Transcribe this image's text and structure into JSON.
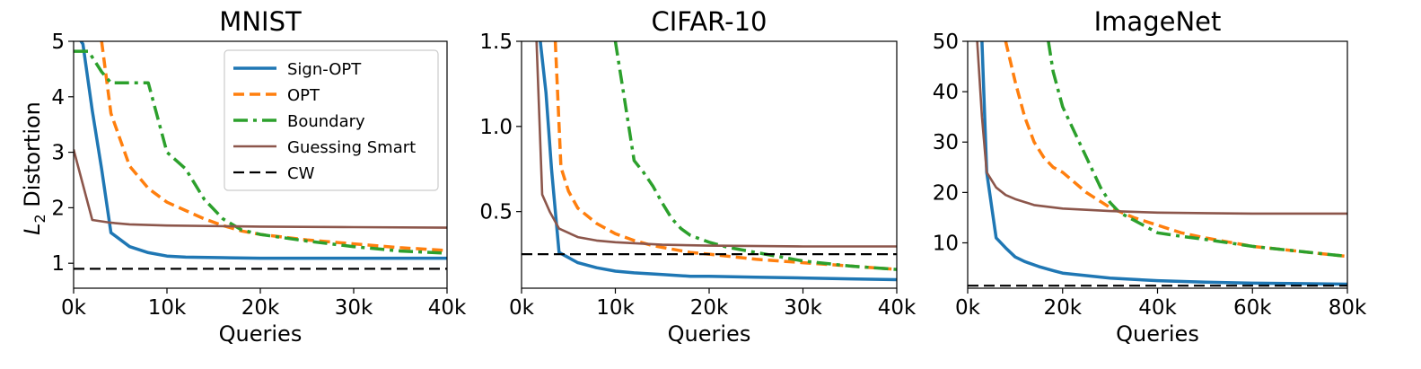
{
  "chart_data": [
    {
      "type": "line",
      "title": "MNIST",
      "xlabel": "Queries",
      "ylabel_main": "L",
      "ylabel_sub": "2",
      "ylabel_rest": " Distortion",
      "xlim": [
        0,
        40000
      ],
      "ylim": [
        0.55,
        5
      ],
      "xticks": [
        0,
        10000,
        20000,
        30000,
        40000
      ],
      "xtick_labels": [
        "0k",
        "10k",
        "20k",
        "30k",
        "40k"
      ],
      "yticks": [
        1,
        2,
        3,
        4,
        5
      ],
      "ytick_labels": [
        "1",
        "2",
        "3",
        "4",
        "5"
      ],
      "grid": false,
      "legend": {
        "position": "top-right",
        "entries": [
          "Sign-OPT",
          "OPT",
          "Boundary",
          "Guessing Smart",
          "CW"
        ]
      },
      "series": [
        {
          "name": "Sign-OPT",
          "color": "#1f77b4",
          "style": "solid",
          "x": [
            0,
            1000,
            2000,
            3000,
            4000,
            6000,
            8000,
            10000,
            12000,
            16000,
            20000,
            30000,
            40000
          ],
          "y": [
            5.2,
            4.95,
            3.75,
            2.7,
            1.55,
            1.3,
            1.19,
            1.13,
            1.11,
            1.1,
            1.09,
            1.09,
            1.09
          ]
        },
        {
          "name": "OPT",
          "color": "#ff7f0e",
          "style": "dashed",
          "x": [
            3000,
            4000,
            6000,
            8000,
            10000,
            12000,
            14000,
            16000,
            18000,
            20000,
            25000,
            30000,
            35000,
            40000
          ],
          "y": [
            5.0,
            3.7,
            2.75,
            2.35,
            2.1,
            1.95,
            1.8,
            1.68,
            1.58,
            1.52,
            1.42,
            1.35,
            1.28,
            1.23
          ]
        },
        {
          "name": "Boundary",
          "color": "#2ca02c",
          "style": "dashdot",
          "x": [
            0,
            1600,
            3000,
            4000,
            6000,
            8000,
            10000,
            12000,
            14000,
            16000,
            18000,
            20000,
            25000,
            30000,
            35000,
            40000
          ],
          "y": [
            4.82,
            4.82,
            4.45,
            4.25,
            4.25,
            4.25,
            3.0,
            2.7,
            2.15,
            1.8,
            1.6,
            1.52,
            1.4,
            1.3,
            1.22,
            1.18
          ]
        },
        {
          "name": "Guessing Smart",
          "color": "#8c564b",
          "style": "solid",
          "x": [
            0,
            2000,
            4000,
            6000,
            10000,
            20000,
            30000,
            40000
          ],
          "y": [
            3.05,
            1.78,
            1.73,
            1.7,
            1.68,
            1.66,
            1.65,
            1.64
          ]
        },
        {
          "name": "CW",
          "color": "#000000",
          "style": "dashed",
          "x": [
            0,
            40000
          ],
          "y": [
            0.9,
            0.9
          ]
        }
      ]
    },
    {
      "type": "line",
      "title": "CIFAR-10",
      "xlabel": "Queries",
      "xlim": [
        0,
        40000
      ],
      "ylim": [
        0.05,
        1.5
      ],
      "xticks": [
        0,
        10000,
        20000,
        30000,
        40000
      ],
      "xtick_labels": [
        "0k",
        "10k",
        "20k",
        "30k",
        "40k"
      ],
      "yticks": [
        0.5,
        1.0,
        1.5
      ],
      "ytick_labels": [
        "0.5",
        "1.0",
        "1.5"
      ],
      "grid": false,
      "series": [
        {
          "name": "Sign-OPT",
          "color": "#1f77b4",
          "style": "solid",
          "x": [
            2000,
            2600,
            3200,
            4000,
            6000,
            8000,
            10000,
            12000,
            15000,
            18000,
            20000,
            25000,
            30000,
            35000,
            40000
          ],
          "y": [
            1.5,
            1.2,
            0.75,
            0.26,
            0.2,
            0.17,
            0.15,
            0.14,
            0.13,
            0.12,
            0.12,
            0.115,
            0.11,
            0.105,
            0.1
          ]
        },
        {
          "name": "OPT",
          "color": "#ff7f0e",
          "style": "dashed",
          "x": [
            3600,
            4200,
            5000,
            6000,
            8000,
            10000,
            12000,
            14000,
            16000,
            18000,
            20000,
            25000,
            30000,
            35000,
            40000
          ],
          "y": [
            1.5,
            0.76,
            0.62,
            0.52,
            0.43,
            0.37,
            0.33,
            0.3,
            0.28,
            0.26,
            0.25,
            0.22,
            0.2,
            0.18,
            0.16
          ]
        },
        {
          "name": "Boundary",
          "color": "#2ca02c",
          "style": "dashdot",
          "x": [
            10000,
            11000,
            12000,
            13000,
            14000,
            15000,
            16000,
            17000,
            18000,
            20000,
            22000,
            25000,
            30000,
            35000,
            40000
          ],
          "y": [
            1.5,
            1.15,
            0.8,
            0.73,
            0.65,
            0.55,
            0.46,
            0.4,
            0.36,
            0.32,
            0.29,
            0.26,
            0.21,
            0.18,
            0.16
          ]
        },
        {
          "name": "Guessing Smart",
          "color": "#8c564b",
          "style": "solid",
          "x": [
            1600,
            2200,
            3000,
            4000,
            6000,
            8000,
            10000,
            15000,
            20000,
            30000,
            40000
          ],
          "y": [
            1.5,
            0.6,
            0.5,
            0.4,
            0.35,
            0.33,
            0.32,
            0.305,
            0.3,
            0.295,
            0.295
          ]
        },
        {
          "name": "CW",
          "color": "#000000",
          "style": "dashed",
          "x": [
            0,
            40000
          ],
          "y": [
            0.25,
            0.25
          ]
        }
      ]
    },
    {
      "type": "line",
      "title": "ImageNet",
      "xlabel": "Queries",
      "xlim": [
        0,
        80000
      ],
      "ylim": [
        1,
        50
      ],
      "xticks": [
        0,
        20000,
        40000,
        60000,
        80000
      ],
      "xtick_labels": [
        "0k",
        "20k",
        "40k",
        "60k",
        "80k"
      ],
      "yticks": [
        10,
        20,
        30,
        40,
        50
      ],
      "ytick_labels": [
        "10",
        "20",
        "30",
        "40",
        "50"
      ],
      "grid": false,
      "series": [
        {
          "name": "Sign-OPT",
          "color": "#1f77b4",
          "style": "solid",
          "x": [
            3000,
            4000,
            6000,
            8000,
            10000,
            12000,
            15000,
            18000,
            20000,
            25000,
            30000,
            40000,
            50000,
            60000,
            70000,
            80000
          ],
          "y": [
            50,
            24,
            11,
            9,
            7.2,
            6.3,
            5.3,
            4.5,
            4.0,
            3.5,
            3.0,
            2.5,
            2.2,
            2.0,
            1.9,
            1.8
          ]
        },
        {
          "name": "OPT",
          "color": "#ff7f0e",
          "style": "dashed",
          "x": [
            8000,
            10000,
            12000,
            14000,
            16000,
            18000,
            20000,
            25000,
            30000,
            35000,
            40000,
            45000,
            50000,
            60000,
            70000,
            80000
          ],
          "y": [
            50,
            42,
            35,
            30,
            27,
            25,
            24,
            20,
            17,
            15,
            13.5,
            12,
            11,
            9.3,
            8.3,
            7.3
          ]
        },
        {
          "name": "Boundary",
          "color": "#2ca02c",
          "style": "dashdot",
          "x": [
            17000,
            18000,
            20000,
            22000,
            25000,
            28000,
            30000,
            32000,
            35000,
            38000,
            40000,
            45000,
            50000,
            60000,
            70000,
            80000
          ],
          "y": [
            50,
            44,
            37,
            33,
            27,
            21,
            18,
            16,
            14.5,
            13,
            12,
            11.3,
            10.7,
            9.3,
            8.3,
            7.3
          ]
        },
        {
          "name": "Guessing Smart",
          "color": "#8c564b",
          "style": "solid",
          "x": [
            2000,
            3000,
            4000,
            6000,
            8000,
            10000,
            14000,
            20000,
            30000,
            40000,
            50000,
            60000,
            70000,
            80000
          ],
          "y": [
            50,
            35,
            24,
            21,
            19.5,
            18.7,
            17.5,
            16.8,
            16.3,
            16.0,
            15.9,
            15.8,
            15.8,
            15.8
          ]
        },
        {
          "name": "CW",
          "color": "#000000",
          "style": "dashed",
          "x": [
            0,
            80000
          ],
          "y": [
            1.5,
            1.5
          ]
        }
      ]
    }
  ]
}
